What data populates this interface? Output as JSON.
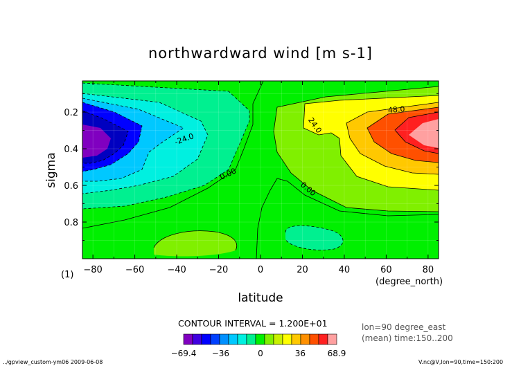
{
  "chart_data": {
    "type": "contour",
    "title": "northwardward wind [m s-1]",
    "xlabel": "latitude",
    "ylabel": "sigma",
    "x_unit": "(degree_north)",
    "y_unit": "(1)",
    "xlim": [
      -85,
      85
    ],
    "ylim": [
      1.0,
      0.03
    ],
    "y_inverted": true,
    "xticks": [
      -80,
      -60,
      -40,
      -20,
      0,
      20,
      40,
      60,
      80
    ],
    "xtick_labels": [
      "−80",
      "−60",
      "−40",
      "−20",
      "0",
      "20",
      "40",
      "60",
      "80"
    ],
    "yticks": [
      0.2,
      0.4,
      0.6,
      0.8
    ],
    "ytick_labels": [
      "0.2",
      "0.4",
      "0.6",
      "0.8"
    ],
    "contour_interval_text": "CONTOUR INTERVAL = 1.200E+01",
    "contour_labels": [
      {
        "text": "-24.0",
        "lat": -36,
        "sigma": 0.36
      },
      {
        "text": "0.00",
        "lat": -15,
        "sigma": 0.55
      },
      {
        "text": "24.0",
        "lat": 25,
        "sigma": 0.28
      },
      {
        "text": "48.0",
        "lat": 65,
        "sigma": 0.2
      },
      {
        "text": "0.00",
        "lat": 22,
        "sigma": 0.63
      }
    ],
    "levels": [
      -69.4,
      -60,
      -48,
      -36,
      -24,
      -12,
      0,
      12,
      24,
      36,
      48,
      60,
      68.9
    ],
    "colorbar": {
      "tick_labels": [
        "−69.4",
        "−36",
        "0",
        "36",
        "68.9"
      ],
      "colors": [
        "#8000c0",
        "#4000e0",
        "#0000ff",
        "#0040ff",
        "#0090ff",
        "#00c8ff",
        "#00f0e0",
        "#00f090",
        "#00f000",
        "#80f000",
        "#c8f000",
        "#ffff00",
        "#ffc800",
        "#ff9000",
        "#ff5000",
        "#ff2020",
        "#ffa0a0"
      ]
    },
    "extremes": {
      "min": -69.4,
      "max": 68.9
    }
  },
  "info": {
    "line1": "lon=90 degree_east",
    "line2": "(mean) time:150..200"
  },
  "footer": {
    "left": "../gpview_custom-ym06  2009-06-08",
    "right": "V.nc@V,lon=90,time=150:200"
  },
  "colors": {
    "background": "#00f000",
    "frame": "#000000"
  }
}
